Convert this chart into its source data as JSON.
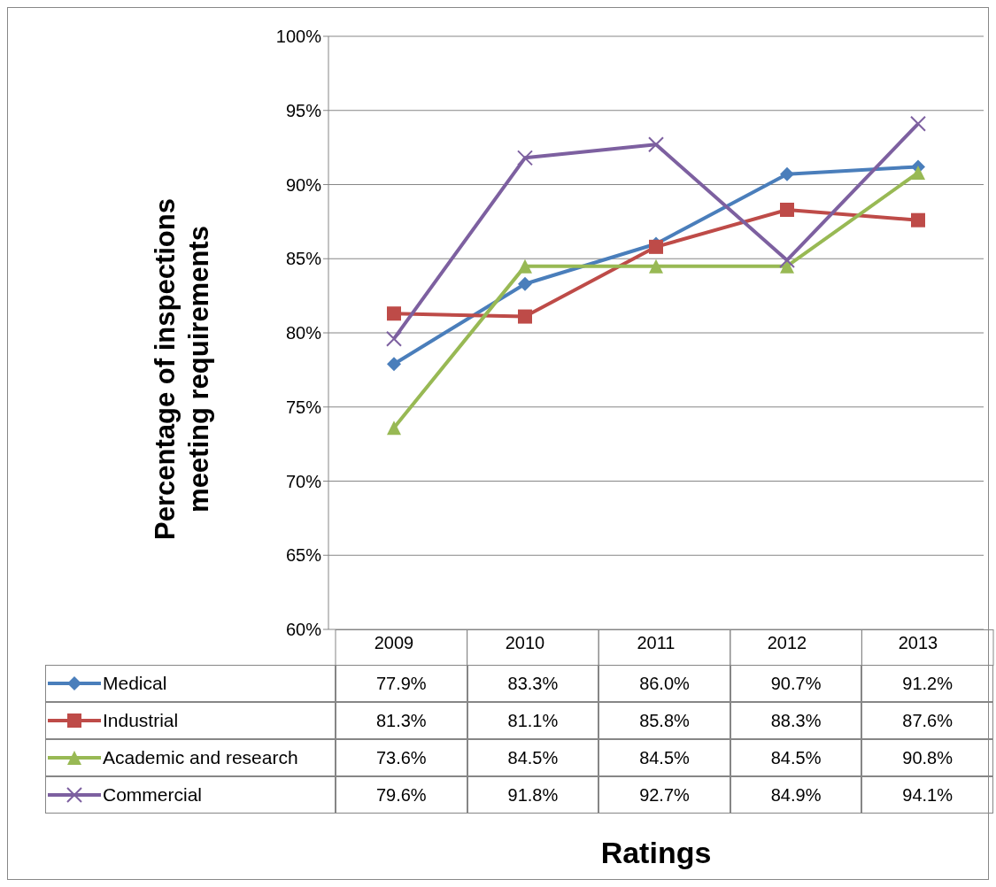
{
  "chart_data": {
    "type": "line",
    "annotations": [
      "Ratings"
    ],
    "ylabel": "Percentage of inspections meeting requirements",
    "categories": [
      "2009",
      "2010",
      "2011",
      "2012",
      "2013"
    ],
    "ylim": [
      60,
      100
    ],
    "yticks": [
      {
        "value": 60,
        "label": "60%"
      },
      {
        "value": 65,
        "label": "65%"
      },
      {
        "value": 70,
        "label": "70%"
      },
      {
        "value": 75,
        "label": "75%"
      },
      {
        "value": 80,
        "label": "80%"
      },
      {
        "value": 85,
        "label": "85%"
      },
      {
        "value": 90,
        "label": "90%"
      },
      {
        "value": 95,
        "label": "95%"
      },
      {
        "value": 100,
        "label": "100%"
      }
    ],
    "grid": "y",
    "legend": "bottom",
    "series": [
      {
        "name": "Medical",
        "color": "#4a7ebb",
        "marker": "diamond",
        "values": [
          77.9,
          83.3,
          86.0,
          90.7,
          91.2
        ],
        "value_labels": [
          "77.9%",
          "83.3%",
          "86.0%",
          "90.7%",
          "91.2%"
        ]
      },
      {
        "name": "Industrial",
        "color": "#be4b48",
        "marker": "square",
        "values": [
          81.3,
          81.1,
          85.8,
          88.3,
          87.6
        ],
        "value_labels": [
          "81.3%",
          "81.1%",
          "85.8%",
          "88.3%",
          "87.6%"
        ]
      },
      {
        "name": "Academic and research",
        "color": "#98b954",
        "marker": "triangle",
        "values": [
          73.6,
          84.5,
          84.5,
          84.5,
          90.8
        ],
        "value_labels": [
          "73.6%",
          "84.5%",
          "84.5%",
          "84.5%",
          "90.8%"
        ]
      },
      {
        "name": "Commercial",
        "color": "#7d60a0",
        "marker": "cross",
        "values": [
          79.6,
          91.8,
          92.7,
          84.9,
          94.1
        ],
        "value_labels": [
          "79.6%",
          "91.8%",
          "92.7%",
          "84.9%",
          "94.1%"
        ]
      }
    ]
  }
}
